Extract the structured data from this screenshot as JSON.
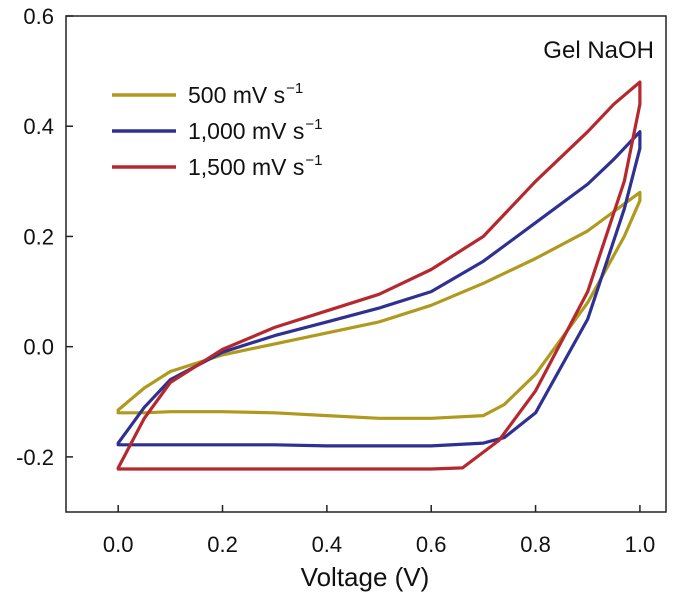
{
  "chart_data": {
    "type": "line",
    "title": "",
    "xlabel": "Voltage (V)",
    "ylabel": "",
    "xlim": [
      -0.1,
      1.05
    ],
    "ylim": [
      -0.3,
      0.6
    ],
    "x_ticks": [
      "0.0",
      "0.2",
      "0.4",
      "0.6",
      "0.8",
      "1.0"
    ],
    "y_ticks": [
      "-0.2",
      "0.0",
      "0.2",
      "0.4",
      "0.6"
    ],
    "annotation": "Gel NaOH",
    "grid": false,
    "legend_position": "top-left",
    "series": [
      {
        "name": "500 mV s",
        "superscript": "−1",
        "color": "#b09a1e",
        "x": [
          0.0,
          0.05,
          0.1,
          0.2,
          0.3,
          0.4,
          0.5,
          0.6,
          0.7,
          0.8,
          0.9,
          0.95,
          1.0,
          1.0,
          0.97,
          0.9,
          0.8,
          0.74,
          0.7,
          0.6,
          0.5,
          0.4,
          0.3,
          0.2,
          0.1,
          0.05,
          0.0,
          0.0
        ],
        "y": [
          -0.115,
          -0.075,
          -0.045,
          -0.015,
          0.005,
          0.025,
          0.045,
          0.075,
          0.115,
          0.16,
          0.21,
          0.245,
          0.28,
          0.265,
          0.2,
          0.08,
          -0.05,
          -0.105,
          -0.125,
          -0.13,
          -0.13,
          -0.125,
          -0.12,
          -0.118,
          -0.118,
          -0.12,
          -0.12,
          -0.115
        ]
      },
      {
        "name": "1,000 mV s",
        "superscript": "−1",
        "color": "#2e3192",
        "x": [
          0.0,
          0.05,
          0.1,
          0.2,
          0.3,
          0.4,
          0.5,
          0.6,
          0.7,
          0.8,
          0.9,
          0.95,
          1.0,
          1.0,
          0.97,
          0.9,
          0.8,
          0.74,
          0.7,
          0.6,
          0.5,
          0.4,
          0.3,
          0.2,
          0.1,
          0.05,
          0.0,
          0.0
        ],
        "y": [
          -0.175,
          -0.11,
          -0.06,
          -0.01,
          0.02,
          0.045,
          0.07,
          0.1,
          0.155,
          0.225,
          0.295,
          0.34,
          0.39,
          0.36,
          0.25,
          0.05,
          -0.12,
          -0.165,
          -0.175,
          -0.18,
          -0.18,
          -0.18,
          -0.178,
          -0.178,
          -0.178,
          -0.178,
          -0.178,
          -0.175
        ]
      },
      {
        "name": "1,500 mV s",
        "superscript": "−1",
        "color": "#b5282e",
        "x": [
          0.0,
          0.05,
          0.1,
          0.2,
          0.3,
          0.4,
          0.5,
          0.6,
          0.7,
          0.8,
          0.9,
          0.95,
          1.0,
          1.0,
          0.97,
          0.9,
          0.8,
          0.73,
          0.66,
          0.6,
          0.5,
          0.4,
          0.3,
          0.2,
          0.1,
          0.05,
          0.0,
          0.0
        ],
        "y": [
          -0.22,
          -0.13,
          -0.065,
          -0.005,
          0.035,
          0.065,
          0.095,
          0.14,
          0.2,
          0.3,
          0.39,
          0.44,
          0.48,
          0.44,
          0.3,
          0.1,
          -0.08,
          -0.17,
          -0.22,
          -0.222,
          -0.222,
          -0.222,
          -0.222,
          -0.222,
          -0.222,
          -0.222,
          -0.222,
          -0.22
        ]
      }
    ]
  }
}
